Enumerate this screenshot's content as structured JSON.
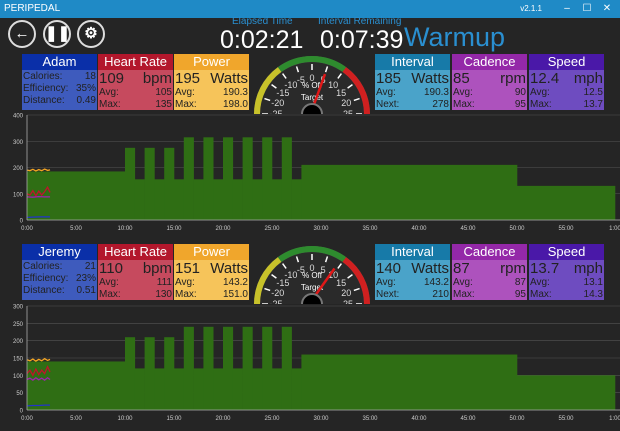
{
  "window": {
    "title": "PERIPEDAL",
    "version": "v2.1.1",
    "minimize_icon": "minimize-icon",
    "maximize_icon": "maximize-icon",
    "close_icon": "close-icon"
  },
  "toolbar": {
    "back_icon": "arrow-left-icon",
    "pause_icon": "pause-icon",
    "settings_icon": "gear-icon"
  },
  "header": {
    "elapsed_label": "Elapsed Time",
    "elapsed": "0:02:21",
    "remaining_label": "Interval Remaining",
    "remaining": "0:07:39",
    "phase": "Warmup"
  },
  "colors": {
    "rider_hd": "#0a2fa8",
    "rider_bd": "#3e5bbd",
    "hr_hd": "#b3172c",
    "hr_bd": "#c64a5e",
    "power_hd": "#f0a62c",
    "power_bd": "#f6c45a",
    "interval_hd": "#177aa8",
    "interval_bd": "#4aa3c9",
    "cadence_hd": "#9428a8",
    "cadence_bd": "#ad52bd",
    "speed_hd": "#4a18a8",
    "speed_bd": "#6e4cc0",
    "workout": "#2f6e14"
  },
  "riders": [
    {
      "name": "Adam",
      "calories_label": "Calories:",
      "calories": "18",
      "efficiency_label": "Efficiency:",
      "efficiency": "35%",
      "distance_label": "Distance:",
      "distance": "0.49",
      "hr": {
        "title": "Heart Rate",
        "value": "109",
        "unit": "bpm",
        "avg_label": "Avg:",
        "avg": "105",
        "max_label": "Max:",
        "max": "135"
      },
      "power": {
        "title": "Power",
        "value": "195",
        "unit": "Watts",
        "avg_label": "Avg:",
        "avg": "190.3",
        "max_label": "Max:",
        "max": "198.0"
      },
      "gauge": {
        "label": "% Off",
        "sublabel": "Target",
        "ticks": [
          "-25",
          "-20",
          "-15",
          "-10",
          "-5",
          "0",
          "5",
          "10",
          "15",
          "20",
          "25"
        ],
        "value": 5
      },
      "interval": {
        "title": "Interval",
        "value": "185",
        "unit": "Watts",
        "avg_label": "Avg:",
        "avg": "190.3",
        "next_label": "Next:",
        "next": "278"
      },
      "cadence": {
        "title": "Cadence",
        "value": "85",
        "unit": "rpm",
        "avg_label": "Avg:",
        "avg": "90",
        "max_label": "Max:",
        "max": "95"
      },
      "speed": {
        "title": "Speed",
        "value": "12.4",
        "unit": "mph",
        "avg_label": "Avg:",
        "avg": "12.5",
        "max_label": "Max:",
        "max": "13.7"
      }
    },
    {
      "name": "Jeremy",
      "calories_label": "Calories:",
      "calories": "21",
      "efficiency_label": "Efficiency:",
      "efficiency": "23%",
      "distance_label": "Distance:",
      "distance": "0.51",
      "hr": {
        "title": "Heart Rate",
        "value": "110",
        "unit": "bpm",
        "avg_label": "Avg:",
        "avg": "111",
        "max_label": "Max:",
        "max": "130"
      },
      "power": {
        "title": "Power",
        "value": "151",
        "unit": "Watts",
        "avg_label": "Avg:",
        "avg": "143.2",
        "max_label": "Max:",
        "max": "151.0"
      },
      "gauge": {
        "label": "% Off",
        "sublabel": "Target",
        "ticks": [
          "-25",
          "-20",
          "-15",
          "-10",
          "-5",
          "0",
          "5",
          "10",
          "15",
          "20",
          "25"
        ],
        "value": 9
      },
      "interval": {
        "title": "Interval",
        "value": "140",
        "unit": "Watts",
        "avg_label": "Avg:",
        "avg": "143.2",
        "next_label": "Next:",
        "next": "210"
      },
      "cadence": {
        "title": "Cadence",
        "value": "87",
        "unit": "rpm",
        "avg_label": "Avg:",
        "avg": "87",
        "max_label": "Max:",
        "max": "95"
      },
      "speed": {
        "title": "Speed",
        "value": "13.7",
        "unit": "mph",
        "avg_label": "Avg:",
        "avg": "13.1",
        "max_label": "Max:",
        "max": "14.3"
      }
    }
  ],
  "chart_data": [
    {
      "type": "area",
      "ylim": [
        0,
        400
      ],
      "yticks": [
        "0",
        "100",
        "200",
        "300",
        "400"
      ],
      "xlim": [
        0,
        60
      ],
      "xticks": [
        "0:00",
        "5:00",
        "10:00",
        "15:00",
        "20:00",
        "25:00",
        "30:00",
        "35:00",
        "40:00",
        "45:00",
        "50:00",
        "55:00",
        "1:00"
      ],
      "grid": true,
      "workout": [
        [
          0,
          10,
          185
        ],
        [
          10,
          11,
          275
        ],
        [
          11,
          12,
          155
        ],
        [
          12,
          13,
          275
        ],
        [
          13,
          14,
          155
        ],
        [
          14,
          15,
          275
        ],
        [
          15,
          16,
          155
        ],
        [
          16,
          17,
          315
        ],
        [
          17,
          18,
          155
        ],
        [
          18,
          19,
          315
        ],
        [
          19,
          20,
          155
        ],
        [
          20,
          21,
          315
        ],
        [
          21,
          22,
          155
        ],
        [
          22,
          23,
          315
        ],
        [
          23,
          24,
          155
        ],
        [
          24,
          25,
          315
        ],
        [
          25,
          26,
          155
        ],
        [
          26,
          27,
          315
        ],
        [
          27,
          28,
          155
        ],
        [
          28,
          50,
          210
        ],
        [
          50,
          60,
          130
        ]
      ],
      "series": [
        {
          "color": "#f5a623",
          "x": [
            0,
            0.3,
            0.6,
            0.9,
            1.2,
            1.5,
            1.8,
            2.1,
            2.35
          ],
          "y": [
            190,
            188,
            193,
            187,
            192,
            188,
            194,
            189,
            191
          ]
        },
        {
          "color": "#c0142c",
          "x": [
            0,
            0.3,
            0.6,
            0.9,
            1.2,
            1.5,
            1.8,
            2.1,
            2.35
          ],
          "y": [
            100,
            95,
            112,
            92,
            110,
            95,
            108,
            125,
            105
          ]
        },
        {
          "color": "#a020b0",
          "x": [
            0,
            0.6,
            1.2,
            1.8,
            2.35
          ],
          "y": [
            88,
            87,
            89,
            88,
            88
          ]
        },
        {
          "color": "#2233cc",
          "x": [
            0,
            0.6,
            1.2,
            1.8,
            2.35
          ],
          "y": [
            10,
            11,
            12,
            12,
            12
          ]
        }
      ]
    },
    {
      "type": "area",
      "ylim": [
        0,
        300
      ],
      "yticks": [
        "0",
        "50",
        "100",
        "150",
        "200",
        "250",
        "300"
      ],
      "xlim": [
        0,
        60
      ],
      "xticks": [
        "0:00",
        "5:00",
        "10:00",
        "15:00",
        "20:00",
        "25:00",
        "30:00",
        "35:00",
        "40:00",
        "45:00",
        "50:00",
        "55:00",
        "1:00"
      ],
      "grid": true,
      "workout": [
        [
          0,
          10,
          140
        ],
        [
          10,
          11,
          210
        ],
        [
          11,
          12,
          120
        ],
        [
          12,
          13,
          210
        ],
        [
          13,
          14,
          120
        ],
        [
          14,
          15,
          210
        ],
        [
          15,
          16,
          120
        ],
        [
          16,
          17,
          240
        ],
        [
          17,
          18,
          120
        ],
        [
          18,
          19,
          240
        ],
        [
          19,
          20,
          120
        ],
        [
          20,
          21,
          240
        ],
        [
          21,
          22,
          120
        ],
        [
          22,
          23,
          240
        ],
        [
          23,
          24,
          120
        ],
        [
          24,
          25,
          240
        ],
        [
          25,
          26,
          120
        ],
        [
          26,
          27,
          240
        ],
        [
          27,
          28,
          120
        ],
        [
          28,
          50,
          160
        ],
        [
          50,
          60,
          100
        ]
      ],
      "series": [
        {
          "color": "#f5a623",
          "x": [
            0,
            0.3,
            0.6,
            0.9,
            1.2,
            1.5,
            1.8,
            2.1,
            2.35
          ],
          "y": [
            145,
            142,
            147,
            141,
            146,
            142,
            148,
            143,
            146
          ]
        },
        {
          "color": "#c0142c",
          "x": [
            0,
            0.3,
            0.6,
            0.9,
            1.2,
            1.5,
            1.8,
            2.1,
            2.35
          ],
          "y": [
            105,
            115,
            100,
            118,
            102,
            115,
            105,
            125,
            110
          ]
        },
        {
          "color": "#a020b0",
          "x": [
            0,
            0.3,
            0.6,
            0.9,
            1.2,
            1.5,
            1.8,
            2.1,
            2.35
          ],
          "y": [
            88,
            92,
            86,
            93,
            87,
            92,
            86,
            93,
            88
          ]
        },
        {
          "color": "#2233cc",
          "x": [
            0,
            0.6,
            1.2,
            1.8,
            2.35
          ],
          "y": [
            12,
            13,
            13,
            14,
            14
          ]
        }
      ]
    }
  ]
}
